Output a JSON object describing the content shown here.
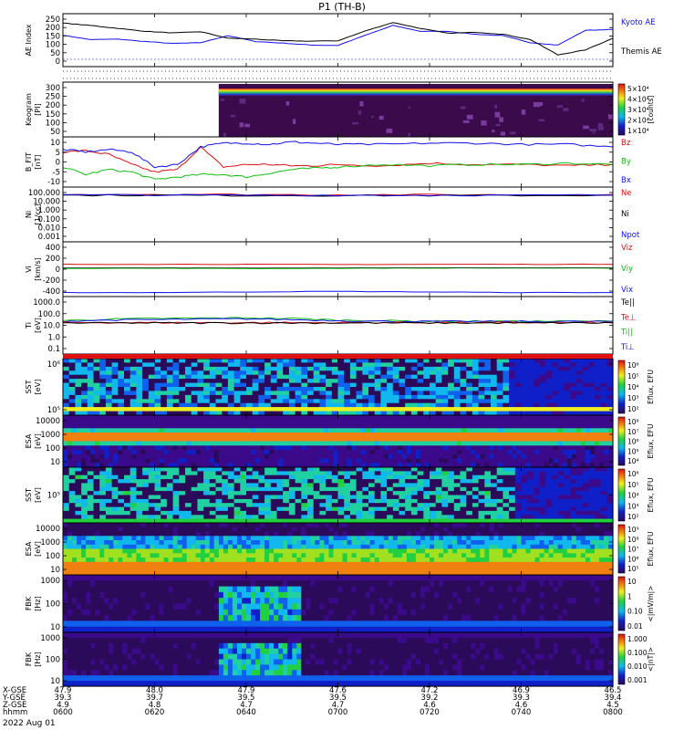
{
  "title": "P1 (TH-B)",
  "date": "2022 Aug 01",
  "colors": {
    "black": "#000000",
    "blue": "#1010ee",
    "red": "#dd1010",
    "green": "#10c010"
  },
  "time_axis": {
    "row_labels": [
      "X-GSE",
      "Y-GSE",
      "Z-GSE",
      "hhmm"
    ],
    "ticks": [
      {
        "x": "47.9",
        "y": "39.3",
        "z": "4.9",
        "t": "0600"
      },
      {
        "x": "48.0",
        "y": "39.7",
        "z": "4.8",
        "t": "0620"
      },
      {
        "x": "47.9",
        "y": "39.5",
        "z": "4.7",
        "t": "0640"
      },
      {
        "x": "47.6",
        "y": "39.5",
        "z": "4.7",
        "t": "0700"
      },
      {
        "x": "47.2",
        "y": "39.2",
        "z": "4.6",
        "t": "0720"
      },
      {
        "x": "46.9",
        "y": "39.3",
        "z": "4.6",
        "t": "0740"
      },
      {
        "x": "46.5",
        "y": "39.4",
        "z": "4.5",
        "t": "0800"
      }
    ]
  },
  "chart_data": [
    {
      "id": "ae",
      "type": "line",
      "ylabel": "AE Index",
      "ylim": [
        -10,
        260
      ],
      "ytick_labels": [
        "250",
        "200",
        "150",
        "100",
        "50",
        "0"
      ],
      "legend": [
        {
          "name": "Kyoto AE",
          "color": "#1010ee"
        },
        {
          "name": "Themis AE",
          "color": "#000000"
        }
      ],
      "x_minutes": [
        0,
        6,
        12,
        18,
        24,
        30,
        36,
        42,
        48,
        54,
        60,
        66,
        72,
        78,
        84,
        90,
        96,
        102,
        108,
        114,
        120
      ],
      "series": [
        {
          "name": "Kyoto AE",
          "color": "#1010ee",
          "values": [
            150,
            128,
            130,
            118,
            108,
            112,
            148,
            118,
            110,
            100,
            98,
            150,
            200,
            170,
            170,
            155,
            148,
            112,
            100,
            175,
            180
          ]
        },
        {
          "name": "Themis AE",
          "color": "#000000",
          "values": [
            212,
            200,
            185,
            170,
            162,
            168,
            135,
            130,
            122,
            120,
            122,
            172,
            215,
            185,
            160,
            165,
            155,
            128,
            50,
            75,
            135
          ]
        }
      ]
    },
    {
      "id": "keogram",
      "type": "heatmap",
      "ylabel": "Keogram",
      "y_sub": "[PI]",
      "ylim": [
        0,
        310
      ],
      "ytick_labels": [
        "300",
        "250",
        "200",
        "150",
        "100",
        "50"
      ],
      "colorbar": {
        "unit": "[counts]",
        "ticks": [
          "5×10⁴",
          "4×10⁴",
          "3×10⁴",
          "2×10⁴",
          "1×10⁴"
        ]
      }
    },
    {
      "id": "bfit",
      "type": "line",
      "ylabel": "B_FIT",
      "y_sub": "[nT]",
      "ylim": [
        -10,
        10
      ],
      "ytick_labels": [
        "10",
        "5",
        "0",
        "-5",
        "-10"
      ],
      "legend": [
        {
          "name": "Bz",
          "color": "#dd1010"
        },
        {
          "name": "By",
          "color": "#10c010"
        },
        {
          "name": "Bx",
          "color": "#1010ee"
        }
      ],
      "x_minutes": [
        0,
        5,
        10,
        15,
        20,
        25,
        30,
        35,
        40,
        45,
        50,
        55,
        60,
        70,
        80,
        90,
        100,
        110,
        120
      ],
      "series": [
        {
          "name": "Bz",
          "color": "#dd1010",
          "values": [
            4,
            4.5,
            3,
            -1,
            -4,
            -3,
            6,
            -2,
            -1,
            -1,
            -1.5,
            -1.5,
            -1,
            -1.5,
            -0.5,
            -1,
            -1,
            -1.5,
            -1
          ]
        },
        {
          "name": "By",
          "color": "#10c010",
          "values": [
            -2,
            -5,
            -3,
            -4,
            -7,
            -6,
            -5,
            -5,
            -6,
            -4.5,
            -3,
            -2.5,
            -2,
            -1,
            -1.5,
            -1,
            -1,
            -0.5,
            -1
          ]
        },
        {
          "name": "Bx",
          "color": "#1010ee",
          "values": [
            5,
            4,
            5,
            4,
            -2,
            -1,
            6,
            7.5,
            7.5,
            7,
            8,
            7.5,
            7,
            7,
            7.5,
            7.5,
            7,
            7,
            6
          ]
        }
      ]
    },
    {
      "id": "ni",
      "type": "line",
      "ylabel": "Ni",
      "y_sub": "[1/cc]",
      "log": true,
      "ylim": [
        0.001,
        100
      ],
      "ytick_labels": [
        "100.000",
        "10.000",
        "1.000",
        "0.100",
        "0.010",
        "0.001"
      ],
      "legend": [
        {
          "name": "Ne",
          "color": "#dd1010"
        },
        {
          "name": "Ni",
          "color": "#000000"
        },
        {
          "name": "Npot",
          "color": "#1010ee"
        }
      ],
      "x_minutes": [
        0,
        20,
        40,
        60,
        80,
        100,
        120
      ],
      "series": [
        {
          "name": "Ne",
          "color": "#dd1010",
          "values": [
            22,
            22,
            21,
            20,
            20,
            20,
            21
          ]
        },
        {
          "name": "Ni",
          "color": "#000000",
          "values": [
            18,
            18,
            17,
            17,
            17,
            17,
            18
          ]
        },
        {
          "name": "Npot",
          "color": "#1010ee",
          "values": [
            19,
            19,
            18,
            18,
            18,
            18,
            19
          ]
        }
      ]
    },
    {
      "id": "vi",
      "type": "line",
      "ylabel": "Vi",
      "y_sub": "[km/s]",
      "ylim": [
        -500,
        450
      ],
      "ytick_labels": [
        "400",
        "200",
        "0",
        "-200",
        "-400"
      ],
      "legend": [
        {
          "name": "Viz",
          "color": "#dd1010"
        },
        {
          "name": "Viy",
          "color": "#10c010"
        },
        {
          "name": "Vix",
          "color": "#1010ee"
        }
      ],
      "x_minutes": [
        0,
        20,
        40,
        60,
        80,
        100,
        120
      ],
      "series": [
        {
          "name": "Viz",
          "color": "#dd1010",
          "values": [
            60,
            60,
            60,
            55,
            60,
            60,
            60
          ]
        },
        {
          "name": "Viy",
          "color": "#10c010",
          "values": [
            -10,
            -10,
            -15,
            -10,
            -5,
            -5,
            -10
          ]
        },
        {
          "name": "Vix",
          "color": "#1010ee",
          "values": [
            -430,
            -430,
            -420,
            -410,
            -420,
            -430,
            -430
          ]
        }
      ]
    },
    {
      "id": "ti",
      "type": "line",
      "ylabel": "Ti",
      "y_sub": "[eV]",
      "log": true,
      "ylim": [
        0.05,
        6000
      ],
      "ytick_labels": [
        "1000.0",
        "100.0",
        "10.0",
        "1.0",
        "0.1"
      ],
      "legend": [
        {
          "name": "Te||",
          "color": "#000000"
        },
        {
          "name": "Te⊥",
          "color": "#dd1010"
        },
        {
          "name": "Ti||",
          "color": "#10c010"
        },
        {
          "name": "Ti⊥",
          "color": "#1010ee"
        }
      ],
      "x_minutes": [
        0,
        10,
        20,
        30,
        40,
        50,
        60,
        70,
        80,
        90,
        100,
        110,
        120
      ],
      "series": [
        {
          "name": "Ti||",
          "color": "#10c010",
          "values": [
            45,
            60,
            70,
            75,
            80,
            70,
            50,
            45,
            40,
            40,
            40,
            40,
            40
          ]
        },
        {
          "name": "Ti⊥",
          "color": "#1010ee",
          "values": [
            40,
            50,
            55,
            60,
            65,
            55,
            45,
            40,
            38,
            38,
            38,
            38,
            38
          ]
        },
        {
          "name": "Te⊥",
          "color": "#dd1010",
          "values": [
            30,
            30,
            30,
            30,
            30,
            30,
            30,
            30,
            30,
            30,
            30,
            30,
            30
          ]
        },
        {
          "name": "Te||",
          "color": "#000000",
          "values": [
            28,
            28,
            28,
            28,
            28,
            28,
            28,
            28,
            28,
            28,
            28,
            28,
            28
          ]
        }
      ]
    },
    {
      "id": "sst_i",
      "type": "heatmap",
      "ylabel": "SST",
      "y_sub": "[eV]",
      "ytick_labels": [
        "10⁶",
        "10⁵"
      ],
      "colorbar": {
        "unit": "Eflux, EFU",
        "ticks": [
          "10⁶",
          "10⁵",
          "10⁴",
          "10³",
          "10²"
        ]
      }
    },
    {
      "id": "esa_i",
      "type": "heatmap",
      "ylabel": "ESA",
      "y_sub": "[eV]",
      "ytick_labels": [
        "10000",
        "1000",
        "100",
        "10"
      ],
      "colorbar": {
        "unit": "Eflux, EFU",
        "ticks": [
          "10⁸",
          "10⁷",
          "10⁶",
          "10⁵",
          "10⁴"
        ]
      }
    },
    {
      "id": "sst_e",
      "type": "heatmap",
      "ylabel": "SST",
      "y_sub": "[eV]",
      "ytick_labels": [
        "10⁵"
      ],
      "colorbar": {
        "unit": "Eflux, EFU",
        "ticks": [
          "10⁶",
          "10⁵",
          "10⁴",
          "10³",
          "10²"
        ]
      }
    },
    {
      "id": "esa_e",
      "type": "heatmap",
      "ylabel": "ESA",
      "y_sub": "[eV]",
      "ytick_labels": [
        "10000",
        "1000",
        "100",
        "10"
      ],
      "colorbar": {
        "unit": "Eflux, EFU",
        "ticks": [
          "10⁹",
          "10⁸",
          "10⁷",
          "10⁶",
          "10⁵"
        ]
      }
    },
    {
      "id": "fbk1",
      "type": "heatmap",
      "ylabel": "FBK",
      "y_sub": "[Hz]",
      "ytick_labels": [
        "1000",
        "100",
        "10"
      ],
      "colorbar": {
        "unit": "<|mV/m|>",
        "ticks": [
          "10",
          "1",
          "0.10",
          "0.01"
        ]
      }
    },
    {
      "id": "fbk2",
      "type": "heatmap",
      "ylabel": "FBK",
      "y_sub": "[Hz]",
      "ytick_labels": [
        "1000",
        "100",
        "10"
      ],
      "colorbar": {
        "unit": "<|nT|>",
        "ticks": [
          "1.000",
          "0.100",
          "0.010",
          "0.001"
        ]
      }
    }
  ]
}
